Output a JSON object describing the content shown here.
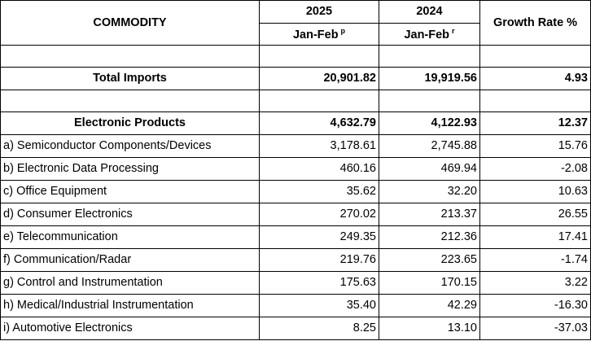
{
  "header": {
    "commodity": "COMMODITY",
    "year_1": "2025",
    "year_2": "2024",
    "growth": "Growth Rate %",
    "period_1": "Jan-Feb",
    "period_1_mark": "p",
    "period_2": "Jan-Feb",
    "period_2_mark": "r"
  },
  "total": {
    "label": "Total Imports",
    "v2025": "20,901.82",
    "v2024": "19,919.56",
    "growth": "4.93"
  },
  "electronics": {
    "label": "Electronic Products",
    "v2025": "4,632.79",
    "v2024": "4,122.93",
    "growth": "12.37"
  },
  "rows": [
    {
      "label": "a) Semiconductor Components/Devices",
      "v2025": "3,178.61",
      "v2024": "2,745.88",
      "growth": "15.76"
    },
    {
      "label": "b) Electronic Data Processing",
      "v2025": "460.16",
      "v2024": "469.94",
      "growth": "-2.08"
    },
    {
      "label": "c) Office Equipment",
      "v2025": "35.62",
      "v2024": "32.20",
      "growth": "10.63"
    },
    {
      "label": "d) Consumer Electronics",
      "v2025": "270.02",
      "v2024": "213.37",
      "growth": "26.55"
    },
    {
      "label": "e) Telecommunication",
      "v2025": "249.35",
      "v2024": "212.36",
      "growth": "17.41"
    },
    {
      "label": "f) Communication/Radar",
      "v2025": "219.76",
      "v2024": "223.65",
      "growth": "-1.74"
    },
    {
      "label": "g) Control and Instrumentation",
      "v2025": "175.63",
      "v2024": "170.15",
      "growth": "3.22"
    },
    {
      "label": "h) Medical/Industrial Instrumentation",
      "v2025": "35.40",
      "v2024": "42.29",
      "growth": "-16.30"
    },
    {
      "label": "i) Automotive Electronics",
      "v2025": "8.25",
      "v2024": "13.10",
      "growth": "-37.03"
    }
  ]
}
